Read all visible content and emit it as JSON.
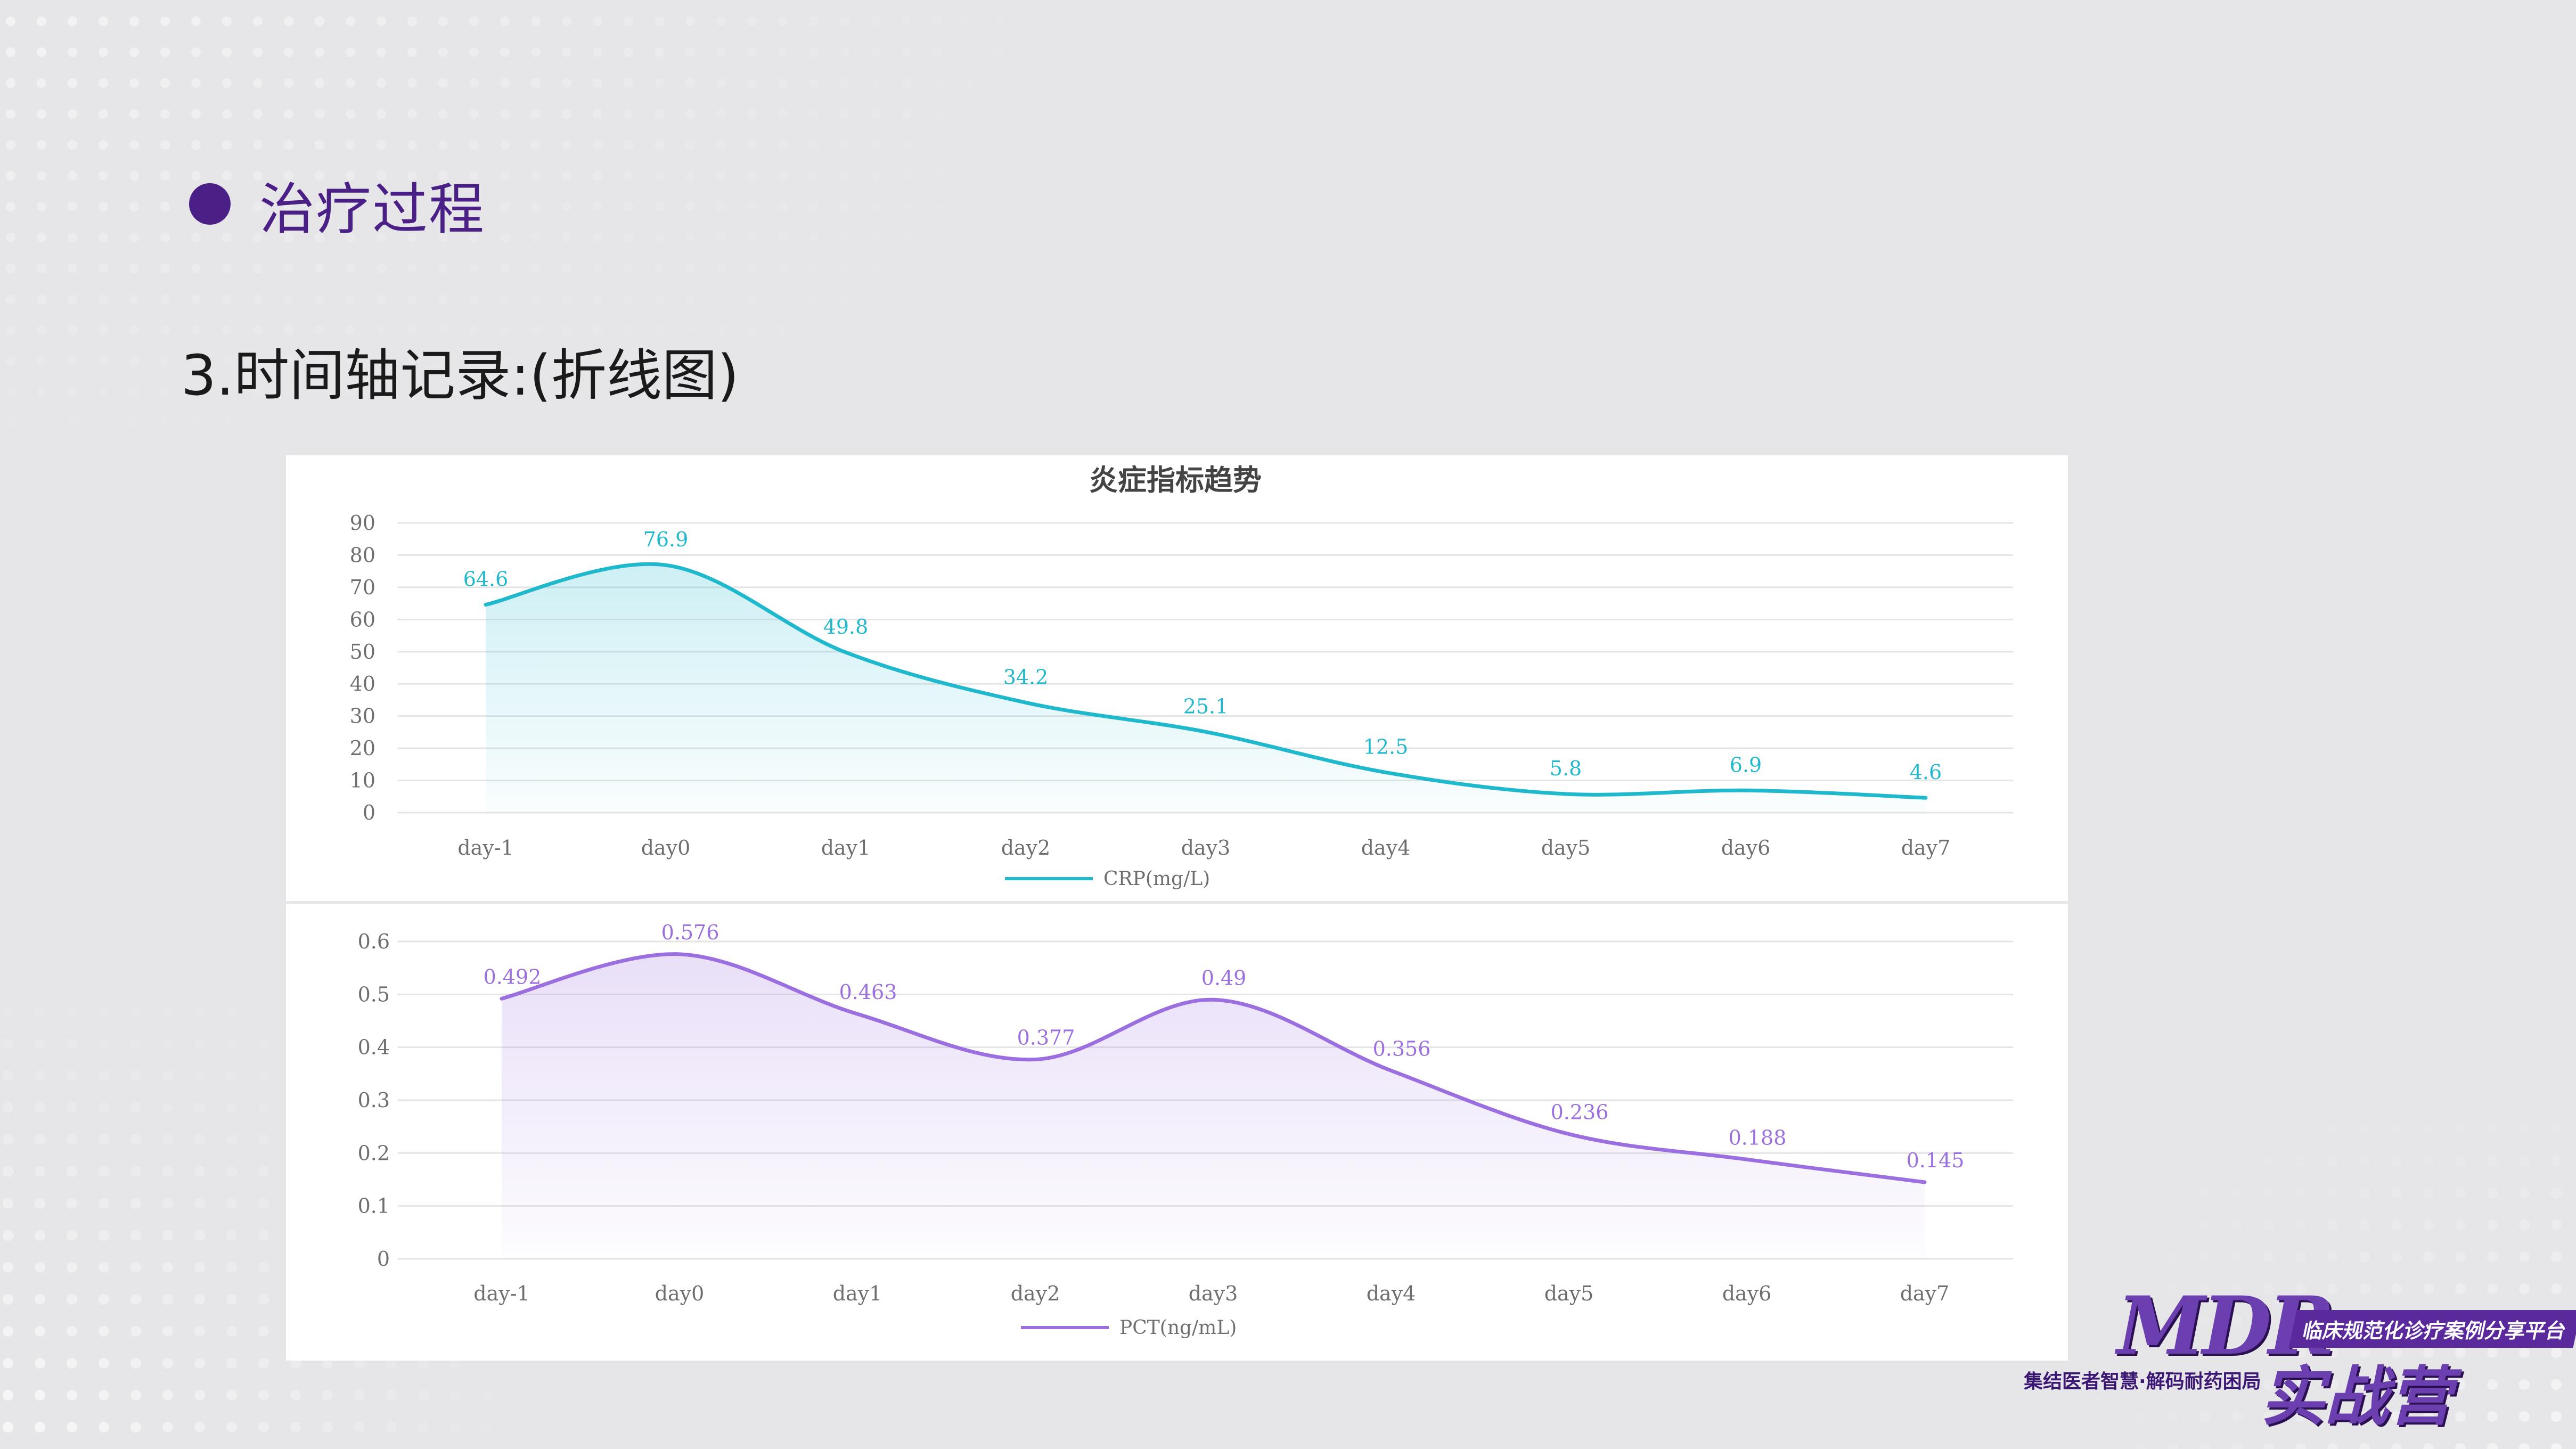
{
  "heading": "治疗过程",
  "subtitle": "3.时间轴记录:(折线图)",
  "logo": {
    "title": "MDR",
    "tag": "临床规范化诊疗案例分享平台",
    "slogan": "集结医者智慧·解码耐药困局",
    "sub": "实战营"
  },
  "chart_data": [
    {
      "type": "line",
      "title": "炎症指标趋势",
      "categories": [
        "day-1",
        "day0",
        "day1",
        "day2",
        "day3",
        "day4",
        "day5",
        "day6",
        "day7"
      ],
      "series": [
        {
          "name": "CRP(mg/L)",
          "values": [
            64.6,
            76.9,
            49.8,
            34.2,
            25.1,
            12.5,
            5.8,
            6.9,
            4.6
          ],
          "color": "#1fb8cd"
        }
      ],
      "y_ticks": [
        "0",
        "10",
        "20",
        "30",
        "40",
        "50",
        "60",
        "70",
        "80",
        "90"
      ],
      "ylim": [
        0,
        90
      ],
      "grid": true,
      "legend_position": "bottom",
      "smooth": true,
      "area_fill": true
    },
    {
      "type": "line",
      "title": "",
      "categories": [
        "day-1",
        "day0",
        "day1",
        "day2",
        "day3",
        "day4",
        "day5",
        "day6",
        "day7"
      ],
      "series": [
        {
          "name": "PCT(ng/mL)",
          "values": [
            0.492,
            0.576,
            0.463,
            0.377,
            0.49,
            0.356,
            0.236,
            0.188,
            0.145
          ],
          "color": "#9b6fe0"
        }
      ],
      "y_ticks": [
        "0",
        "0.1",
        "0.2",
        "0.3",
        "0.4",
        "0.5",
        "0.6"
      ],
      "ylim": [
        0,
        0.6
      ],
      "grid": true,
      "legend_position": "bottom",
      "smooth": true,
      "area_fill": true
    }
  ]
}
